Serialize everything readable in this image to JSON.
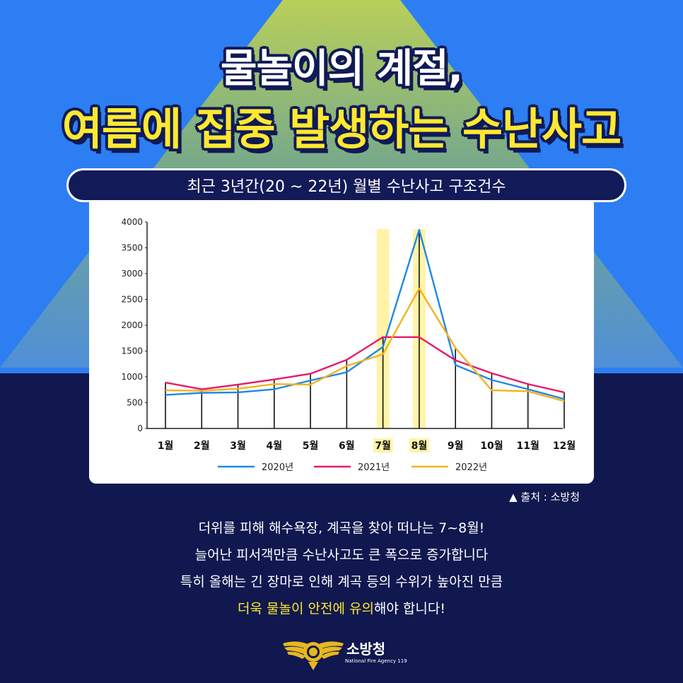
{
  "header": {
    "title_line1": "물놀이의 계절,",
    "title_line2": "여름에 집중 발생하는 수난사고"
  },
  "chart_header": "최근 3년간(20 ~ 22년) 월별 수난사고 구조건수",
  "colors": {
    "background_top": "#2d7ef2",
    "background_bottom": "#10184f",
    "title_yellow": "#ffe830",
    "highlight": "#fff4a8"
  },
  "chart_data": {
    "type": "line",
    "title": "최근 3년간(20 ~ 22년) 월별 수난사고 구조건수",
    "categories": [
      "1월",
      "2월",
      "3월",
      "4월",
      "5월",
      "6월",
      "7월",
      "8월",
      "9월",
      "10월",
      "11월",
      "12월"
    ],
    "highlighted_categories": [
      "7월",
      "8월"
    ],
    "ylim": [
      0,
      4000
    ],
    "yticks": [
      "0",
      "500",
      "1000",
      "1500",
      "2000",
      "2500",
      "3000",
      "3500",
      "4000"
    ],
    "grid": false,
    "legend_position": "bottom",
    "series": [
      {
        "name": "2020년",
        "color": "#1e88e5",
        "values": [
          650,
          690,
          700,
          760,
          930,
          1090,
          1580,
          3850,
          1230,
          940,
          760,
          570
        ]
      },
      {
        "name": "2021년",
        "color": "#e8196b",
        "values": [
          890,
          760,
          850,
          950,
          1060,
          1330,
          1770,
          1770,
          1320,
          1070,
          860,
          700
        ]
      },
      {
        "name": "2022년",
        "color": "#f5b21b",
        "values": [
          740,
          730,
          770,
          860,
          850,
          1210,
          1440,
          2710,
          1560,
          740,
          720,
          530
        ]
      }
    ]
  },
  "source": "▲ 출처 : 소방청",
  "body": {
    "line1": "더위를 피해 해수욕장, 계곡을 찾아 떠나는 7~8월!",
    "line2": "늘어난 피서객만큼 수난사고도 큰 폭으로 증가합니다",
    "line3": "특히 올해는 긴 장마로 인해 계곡 등의 수위가 높아진 만큼",
    "line4_highlight": "더욱 물놀이 안전에 유의",
    "line4_rest": "해야 합니다!"
  },
  "logo": {
    "name": "소방청",
    "subtitle": "National Fire Agency 119"
  }
}
